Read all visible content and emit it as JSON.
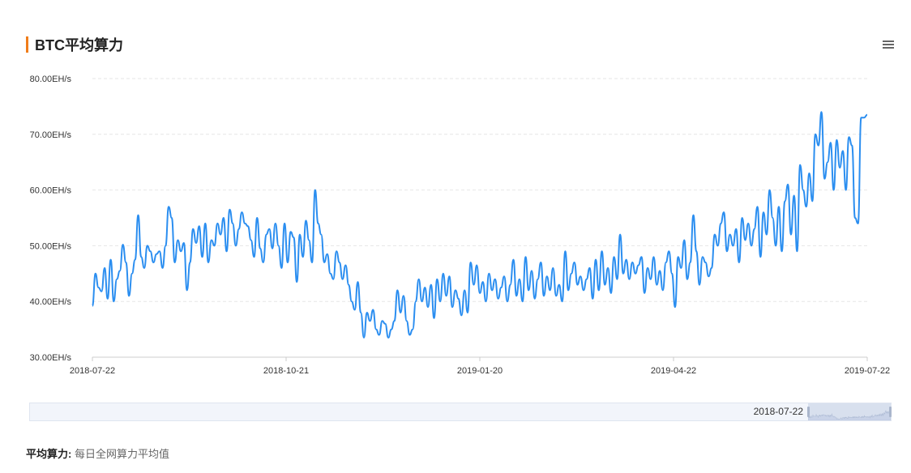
{
  "header": {
    "title": "BTC平均算力",
    "menu_icon": "hamburger-menu-icon"
  },
  "colors": {
    "line": "#2b8ef0",
    "accent": "#f07d1a",
    "grid": "#e6e6e6",
    "axis": "#cccccc"
  },
  "chart_data": {
    "type": "line",
    "title": "BTC平均算力",
    "ylabel": "",
    "xlabel": "",
    "ylim": [
      30,
      80
    ],
    "y_ticks": [
      "30.00EH/s",
      "40.00EH/s",
      "50.00EH/s",
      "60.00EH/s",
      "70.00EH/s",
      "80.00EH/s"
    ],
    "x_ticks": [
      "2018-07-22",
      "2018-10-21",
      "2019-01-20",
      "2019-04-22",
      "2019-07-22"
    ],
    "x_start": "2018-07-22",
    "x_end": "2019-07-22",
    "grid": true,
    "series": [
      {
        "values": [
          39.2,
          45.0,
          42.5,
          41.8,
          46.0,
          40.5,
          47.5,
          40.0,
          44.0,
          45.5,
          50.2,
          47.0,
          41.0,
          45.0,
          47.5,
          55.5,
          48.0,
          46.0,
          50.0,
          49.0,
          47.0,
          48.5,
          49.0,
          46.0,
          50.0,
          57.0,
          55.0,
          47.0,
          51.0,
          49.0,
          50.5,
          42.0,
          47.0,
          53.0,
          50.5,
          53.5,
          48.0,
          54.0,
          47.0,
          51.0,
          50.0,
          54.0,
          52.0,
          55.0,
          49.0,
          56.5,
          54.0,
          50.0,
          53.0,
          56.0,
          54.0,
          53.5,
          51.0,
          48.0,
          55.0,
          49.5,
          47.0,
          52.0,
          53.0,
          49.5,
          54.0,
          50.0,
          46.0,
          54.0,
          47.0,
          52.5,
          51.5,
          43.5,
          52.0,
          48.0,
          54.5,
          51.0,
          47.0,
          60.0,
          54.0,
          52.0,
          47.0,
          48.5,
          45.0,
          44.0,
          49.0,
          47.0,
          44.0,
          46.5,
          43.0,
          40.0,
          38.5,
          43.5,
          38.0,
          33.5,
          38.0,
          36.5,
          38.5,
          35.0,
          34.0,
          36.5,
          36.0,
          33.5,
          35.0,
          36.5,
          42.0,
          38.0,
          41.0,
          36.5,
          34.0,
          35.0,
          40.0,
          44.0,
          40.0,
          42.5,
          39.0,
          43.0,
          37.0,
          44.0,
          40.0,
          45.0,
          41.0,
          44.5,
          39.0,
          42.0,
          40.5,
          37.5,
          42.0,
          38.0,
          47.0,
          43.0,
          46.5,
          41.5,
          43.5,
          40.0,
          45.0,
          42.0,
          44.0,
          40.5,
          42.5,
          44.5,
          40.0,
          43.0,
          47.5,
          41.0,
          44.0,
          40.0,
          48.0,
          42.0,
          45.5,
          40.5,
          44.0,
          47.0,
          41.0,
          44.5,
          42.0,
          46.0,
          41.0,
          43.0,
          40.0,
          49.0,
          42.0,
          45.0,
          47.0,
          43.0,
          44.5,
          42.0,
          44.0,
          46.0,
          40.5,
          47.5,
          42.0,
          49.0,
          43.0,
          46.0,
          41.5,
          48.0,
          44.0,
          52.0,
          45.0,
          47.5,
          44.0,
          47.0,
          45.0,
          46.5,
          48.0,
          41.5,
          46.0,
          44.0,
          48.0,
          43.0,
          45.5,
          42.0,
          47.0,
          49.0,
          45.0,
          39.0,
          48.0,
          46.0,
          51.0,
          44.0,
          47.0,
          55.5,
          49.0,
          43.0,
          48.0,
          47.0,
          44.5,
          46.0,
          52.0,
          50.0,
          54.0,
          56.0,
          49.0,
          52.0,
          50.0,
          53.0,
          47.0,
          55.0,
          51.0,
          54.0,
          50.0,
          53.0,
          57.0,
          48.0,
          56.0,
          52.0,
          60.0,
          55.0,
          50.0,
          57.0,
          49.0,
          58.0,
          61.0,
          52.0,
          59.0,
          49.0,
          64.5,
          60.0,
          57.0,
          63.0,
          58.0,
          70.0,
          68.0,
          74.0,
          62.0,
          65.0,
          68.5,
          60.0,
          69.0,
          64.0,
          67.0,
          60.0,
          69.5,
          68.0,
          55.0,
          54.0,
          73.0,
          73.0,
          73.5
        ]
      }
    ]
  },
  "slider": {
    "label": "2018-07-22"
  },
  "footnote": {
    "term": "平均算力:",
    "description": "每日全网算力平均值"
  }
}
